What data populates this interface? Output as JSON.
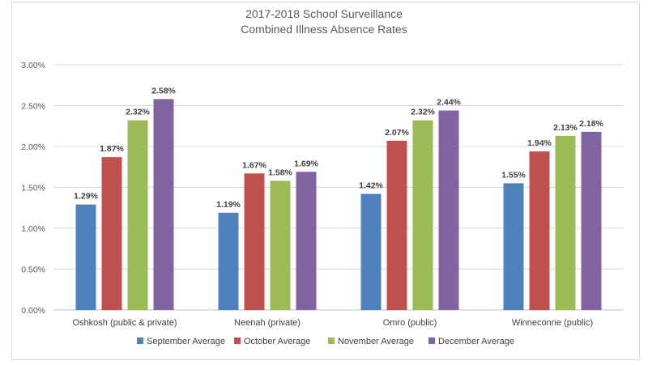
{
  "chart_data": {
    "type": "bar",
    "title": "2017-2018 School Surveillance",
    "subtitle": "Combined Illness Absence Rates",
    "xlabel": "",
    "ylabel": "",
    "ylim": [
      0,
      3.0
    ],
    "yticks": [
      "0.00%",
      "0.50%",
      "1.00%",
      "1.50%",
      "2.00%",
      "2.50%",
      "3.00%"
    ],
    "grid": true,
    "legend_position": "bottom",
    "categories": [
      "Oshkosh (public & private)",
      "Neenah (private)",
      "Omro (public)",
      "Winneconne (public)"
    ],
    "series": [
      {
        "name": "September Average",
        "color": "#4f81bd",
        "values": [
          1.29,
          1.19,
          1.42,
          1.55
        ],
        "labels": [
          "1.29%",
          "1.19%",
          "1.42%",
          "1.55%"
        ]
      },
      {
        "name": "October Average",
        "color": "#c0504d",
        "values": [
          1.87,
          1.67,
          2.07,
          1.94
        ],
        "labels": [
          "1.87%",
          "1.67%",
          "2.07%",
          "1.94%"
        ]
      },
      {
        "name": "November Average",
        "color": "#9bbb59",
        "values": [
          2.32,
          1.58,
          2.32,
          2.13
        ],
        "labels": [
          "2.32%",
          "1.58%",
          "2.32%",
          "2.13%"
        ]
      },
      {
        "name": "December Average",
        "color": "#8064a2",
        "values": [
          2.58,
          1.69,
          2.44,
          2.18
        ],
        "labels": [
          "2.58%",
          "1.69%",
          "2.44%",
          "2.18%"
        ]
      }
    ]
  }
}
